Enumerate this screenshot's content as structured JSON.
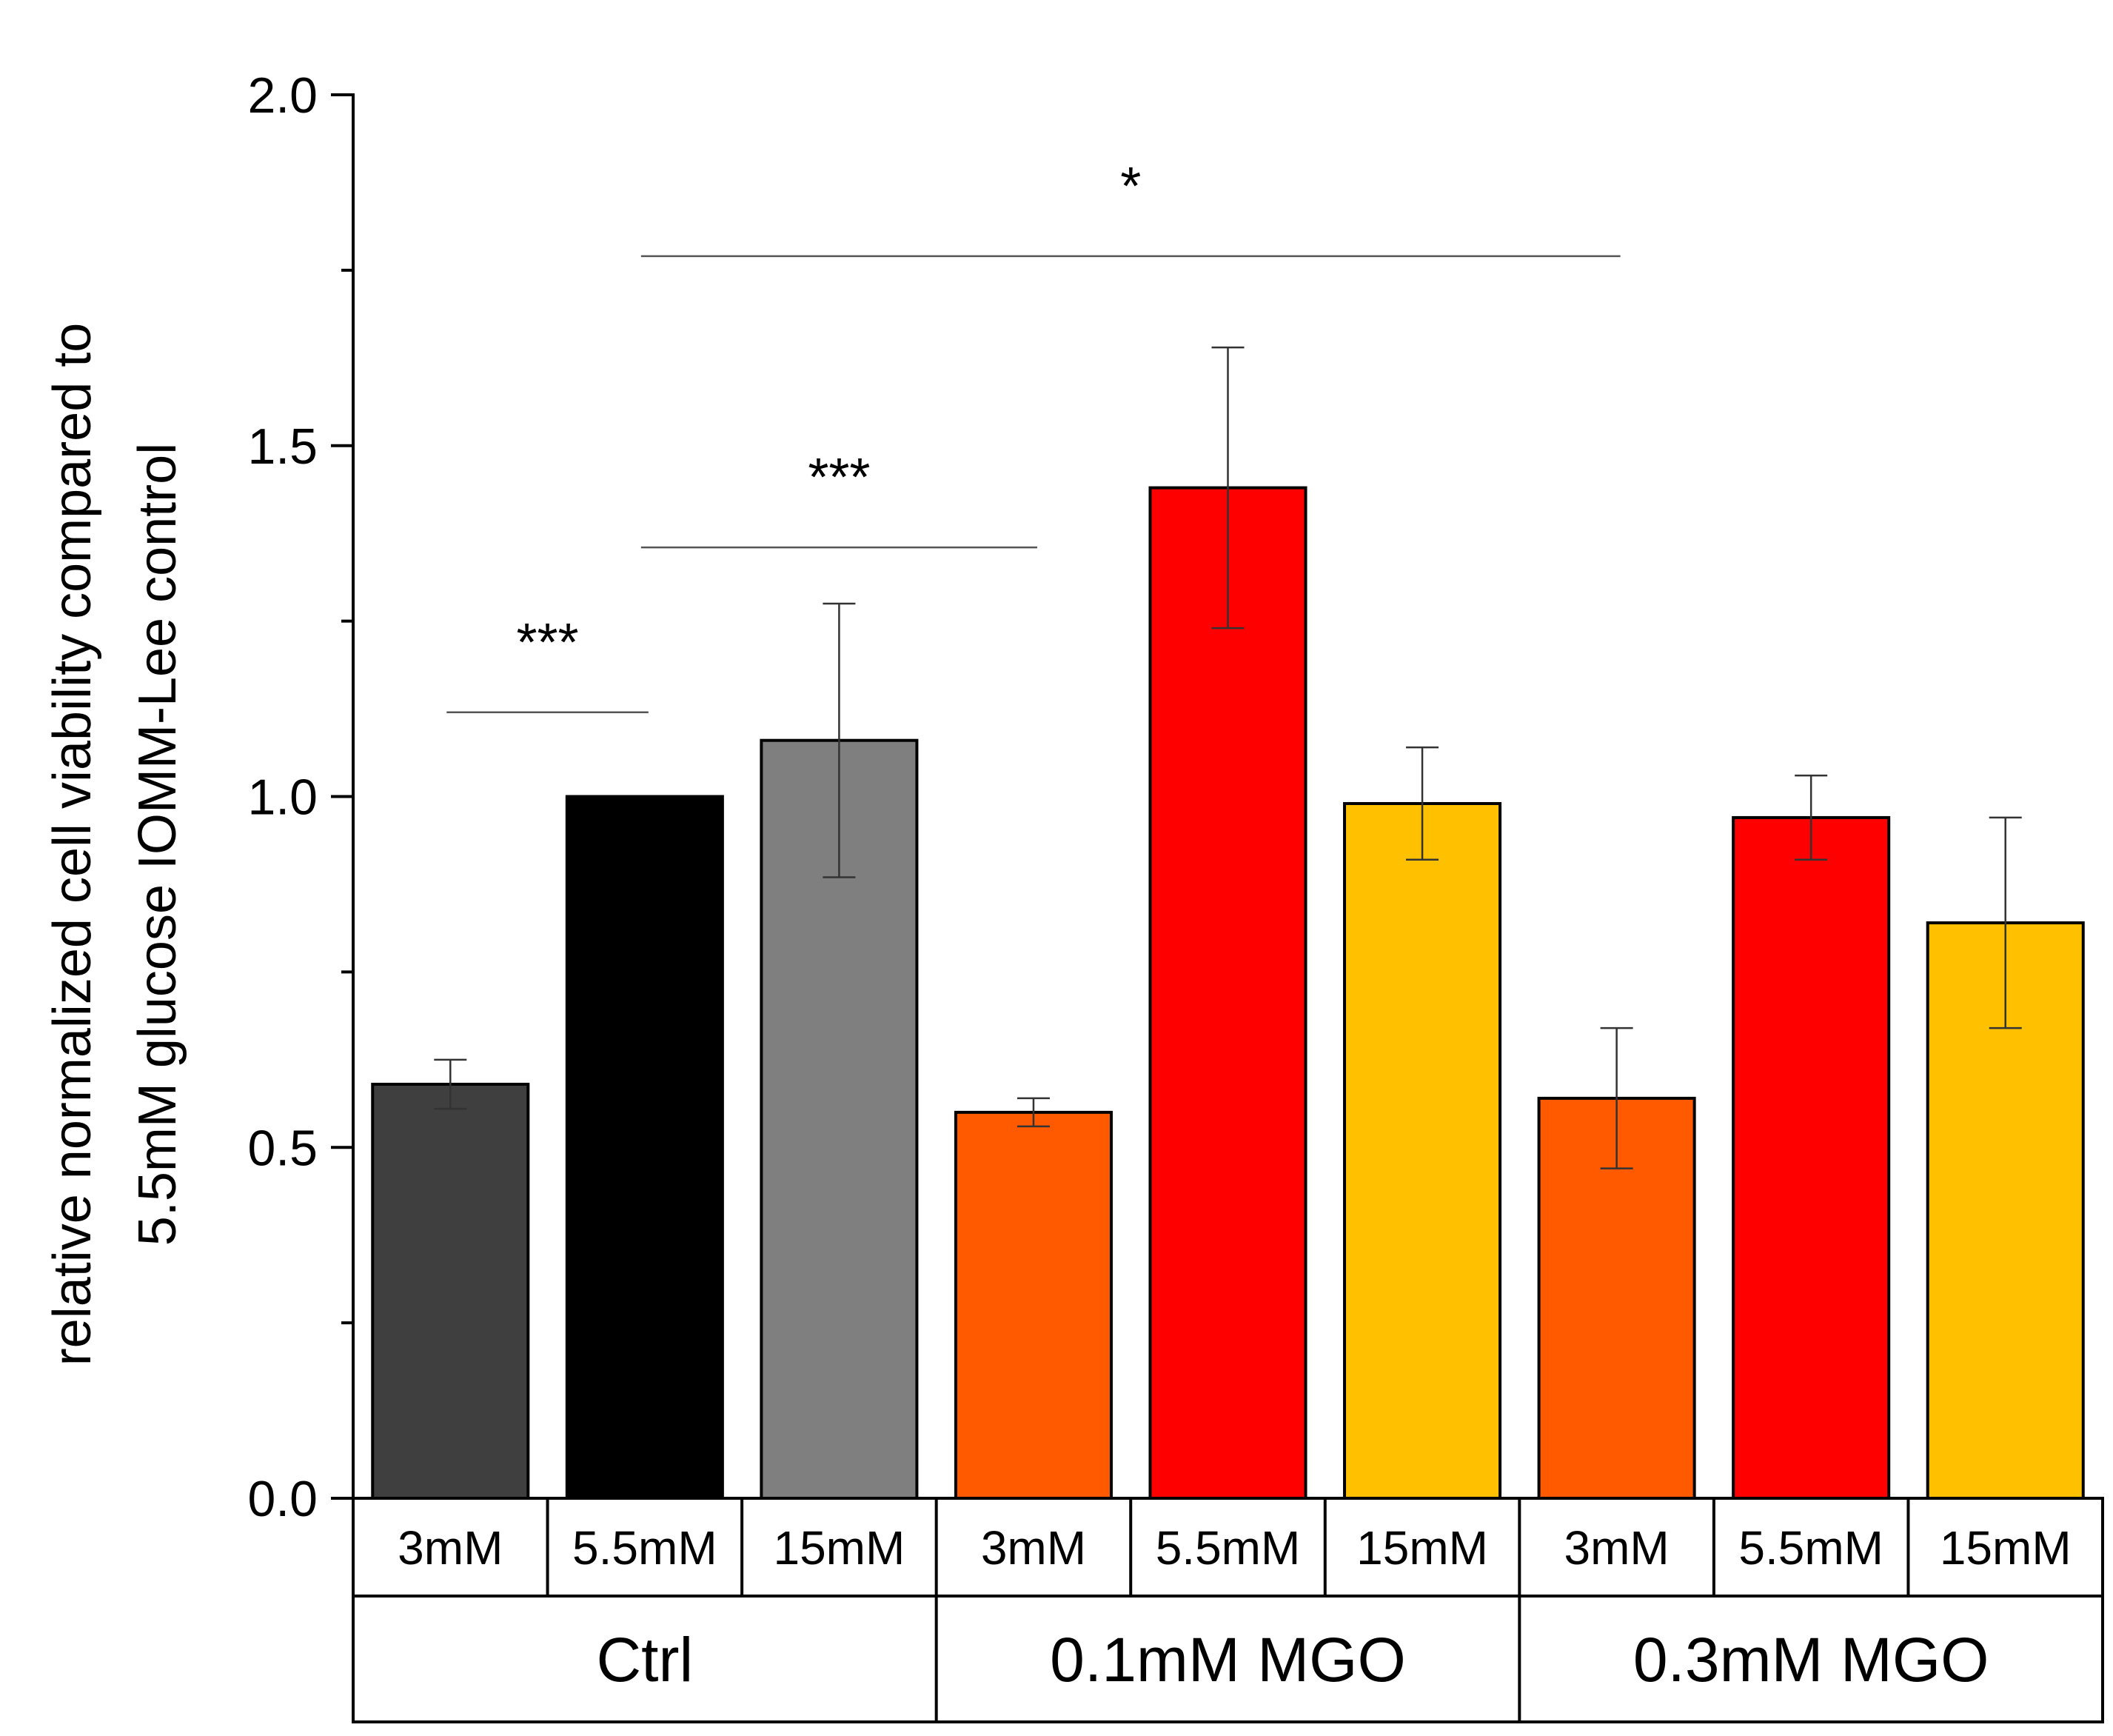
{
  "chart_data": {
    "type": "bar",
    "title": "",
    "xlabel": "",
    "ylabel_lines": [
      "relative normalized cell viability compared to",
      "5.5mM glucose IOMM-Lee control"
    ],
    "ylim": [
      0,
      2.0
    ],
    "yticks": [
      "0.0",
      "0.5",
      "1.0",
      "1.5",
      "2.0"
    ],
    "ytick_values": [
      0,
      0.5,
      1.0,
      1.5,
      2.0
    ],
    "groups": [
      "Ctrl",
      "0.1mM MGO",
      "0.3mM MGO"
    ],
    "categories": [
      "3mM",
      "5.5mM",
      "15mM",
      "3mM",
      "5.5mM",
      "15mM",
      "3mM",
      "5.5mM",
      "15mM"
    ],
    "values": [
      0.59,
      1.0,
      1.08,
      0.55,
      1.44,
      0.99,
      0.57,
      0.97,
      0.82
    ],
    "errors": [
      0.035,
      0.0,
      0.195,
      0.02,
      0.2,
      0.08,
      0.1,
      0.06,
      0.15
    ],
    "colors": [
      "#3f3f3f",
      "#000000",
      "#7f7f7f",
      "#ff5a00",
      "#ff0000",
      "#ffc000",
      "#ff5a00",
      "#ff0000",
      "#ffc000"
    ],
    "significance": [
      {
        "label": "***",
        "from": 0,
        "to": 1,
        "y": 1.12
      },
      {
        "label": "***",
        "from": 1,
        "to": 3,
        "y": 1.355
      },
      {
        "label": "*",
        "from": 1,
        "to": 6,
        "y": 1.77
      }
    ]
  }
}
